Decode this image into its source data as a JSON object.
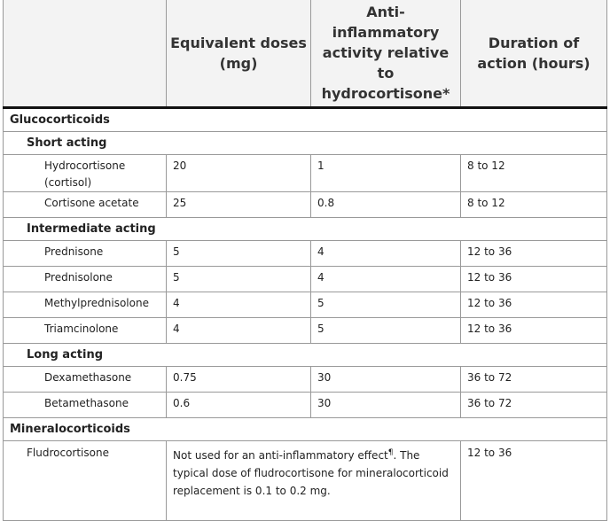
{
  "header": {
    "col1": "",
    "col2": "Equivalent doses (mg)",
    "col3": "Anti-inflammatory activity relative to hydrocortisone*",
    "col4": "Duration of action (hours)"
  },
  "glucocorticoids": {
    "label": "Glucocorticoids",
    "short": {
      "label": "Short acting",
      "rows": [
        {
          "drug": "Hydrocortisone (cortisol)",
          "dose": "20",
          "activity": "1",
          "duration": "8 to 12"
        },
        {
          "drug": "Cortisone acetate",
          "dose": "25",
          "activity": "0.8",
          "duration": "8 to 12"
        }
      ]
    },
    "intermediate": {
      "label": "Intermediate acting",
      "rows": [
        {
          "drug": "Prednisone",
          "dose": "5",
          "activity": "4",
          "duration": "12 to 36"
        },
        {
          "drug": "Prednisolone",
          "dose": "5",
          "activity": "4",
          "duration": "12 to 36"
        },
        {
          "drug": "Methylprednisolone",
          "dose": "4",
          "activity": "5",
          "duration": "12 to 36"
        },
        {
          "drug": "Triamcinolone",
          "dose": "4",
          "activity": "5",
          "duration": "12 to 36"
        }
      ]
    },
    "long": {
      "label": "Long acting",
      "rows": [
        {
          "drug": "Dexamethasone",
          "dose": "0.75",
          "activity": "30",
          "duration": "36 to 72"
        },
        {
          "drug": "Betamethasone",
          "dose": "0.6",
          "activity": "30",
          "duration": "36 to 72"
        }
      ]
    }
  },
  "mineralocorticoids": {
    "label": "Mineralocorticoids",
    "row": {
      "drug": "Fludrocortisone",
      "note_start": "Not used for an anti-inflammatory effect",
      "note_mark": "¶",
      "note_end": ". The typical dose of fludrocortisone for mineralocorticoid replacement is 0.1 to 0.2 mg.",
      "duration": "12 to 36"
    }
  }
}
